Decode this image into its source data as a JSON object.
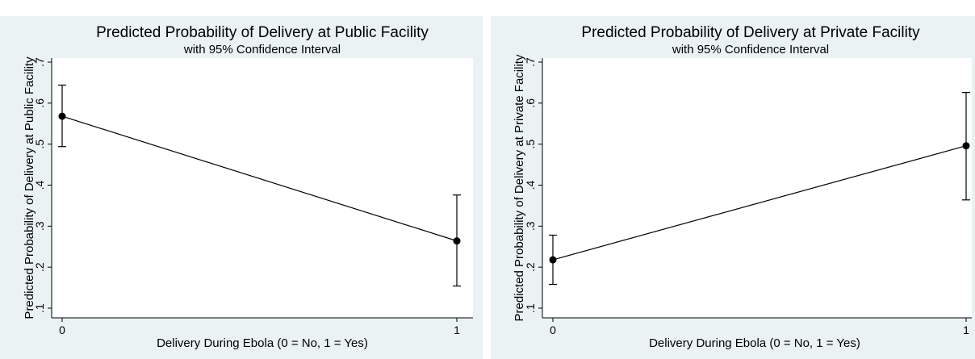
{
  "chart_data": [
    {
      "type": "line",
      "title": "Predicted Probability of Delivery at Public Facility",
      "subtitle": "with 95% Confidence Interval",
      "xlabel": "Delivery During Ebola (0 = No, 1 = Yes)",
      "ylabel": "Predicted Probability of Delivery at Public Facility",
      "xlim": [
        0,
        1
      ],
      "ylim": [
        0.1,
        0.7
      ],
      "xticks": [
        0,
        1
      ],
      "yticks": [
        0.1,
        0.2,
        0.3,
        0.4,
        0.5,
        0.6,
        0.7
      ],
      "ytick_labels": [
        ".1",
        ".2",
        ".3",
        ".4",
        ".5",
        ".6",
        ".7"
      ],
      "grid": false,
      "x": [
        0,
        1
      ],
      "series": [
        {
          "values": [
            0.568,
            0.264
          ],
          "ci_lower": [
            0.494,
            0.154
          ],
          "ci_upper": [
            0.644,
            0.376
          ]
        }
      ]
    },
    {
      "type": "line",
      "title": "Predicted Probability of Delivery at Private Facility",
      "subtitle": "with 95% Confidence Interval",
      "xlabel": "Delivery During Ebola (0 = No, 1 = Yes)",
      "ylabel": "Predicted Probability of Delivery at Private Facility",
      "xlim": [
        0,
        1
      ],
      "ylim": [
        0.1,
        0.7
      ],
      "xticks": [
        0,
        1
      ],
      "yticks": [
        0.1,
        0.2,
        0.3,
        0.4,
        0.5,
        0.6,
        0.7
      ],
      "ytick_labels": [
        ".1",
        ".2",
        ".3",
        ".4",
        ".5",
        ".6",
        ".7"
      ],
      "grid": false,
      "x": [
        0,
        1
      ],
      "series": [
        {
          "values": [
            0.218,
            0.496
          ],
          "ci_lower": [
            0.158,
            0.364
          ],
          "ci_upper": [
            0.278,
            0.626
          ]
        }
      ]
    }
  ]
}
